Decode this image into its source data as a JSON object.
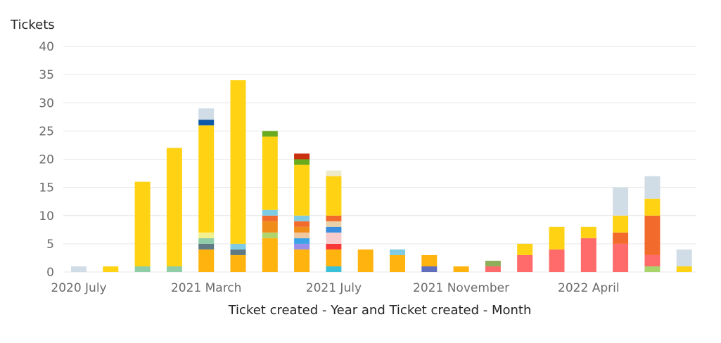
{
  "chart_data": {
    "type": "bar",
    "stacked": true,
    "title": "",
    "ylabel": "Tickets",
    "xlabel": "Ticket created - Year and Ticket created - Month",
    "ylim": [
      0,
      40
    ],
    "yticks": [
      "0",
      "5",
      "10",
      "15",
      "20",
      "25",
      "30",
      "35",
      "40"
    ],
    "grid": true,
    "legend": "none",
    "xtick_labels": [
      {
        "label": "2020 July",
        "category_index": 0
      },
      {
        "label": "2021 March",
        "category_index": 4
      },
      {
        "label": "2021 July",
        "category_index": 8
      },
      {
        "label": "2021 November",
        "category_index": 12
      },
      {
        "label": "2022 April",
        "category_index": 16
      }
    ],
    "stacks": [
      [
        {
          "v": 1,
          "c": "#d1dde6"
        }
      ],
      [
        {
          "v": 1,
          "c": "#ffd314"
        }
      ],
      [
        {
          "v": 1,
          "c": "#8fcca8"
        },
        {
          "v": 15,
          "c": "#ffd314"
        }
      ],
      [
        {
          "v": 1,
          "c": "#8fcca8"
        },
        {
          "v": 21,
          "c": "#ffd314"
        }
      ],
      [
        {
          "v": 4,
          "c": "#ffb30f"
        },
        {
          "v": 1,
          "c": "#5f7a84"
        },
        {
          "v": 1,
          "c": "#8fcca8"
        },
        {
          "v": 1,
          "c": "#f2f08f"
        },
        {
          "v": 19,
          "c": "#ffd314"
        },
        {
          "v": 1,
          "c": "#0f5aa8"
        },
        {
          "v": 2,
          "c": "#d1dde6"
        }
      ],
      [
        {
          "v": 3,
          "c": "#ffb30f"
        },
        {
          "v": 1,
          "c": "#5f7a84"
        },
        {
          "v": 1,
          "c": "#7fcbe3"
        },
        {
          "v": 29,
          "c": "#ffd314"
        }
      ],
      [
        {
          "v": 6,
          "c": "#ffb30f"
        },
        {
          "v": 1,
          "c": "#b0d46c"
        },
        {
          "v": 2,
          "c": "#f08c1a"
        },
        {
          "v": 1,
          "c": "#f26a2c"
        },
        {
          "v": 1,
          "c": "#7fcbe3"
        },
        {
          "v": 13,
          "c": "#ffd314"
        },
        {
          "v": 1,
          "c": "#6aaa1e"
        }
      ],
      [
        {
          "v": 4,
          "c": "#ffb30f"
        },
        {
          "v": 1,
          "c": "#9a8ee8"
        },
        {
          "v": 1,
          "c": "#3aa3e8"
        },
        {
          "v": 1,
          "c": "#f0c8a0"
        },
        {
          "v": 1,
          "c": "#f08c1a"
        },
        {
          "v": 1,
          "c": "#f26a2c"
        },
        {
          "v": 1,
          "c": "#7fcbe3"
        },
        {
          "v": 9,
          "c": "#ffd314"
        },
        {
          "v": 1,
          "c": "#6aaa1e"
        },
        {
          "v": 1,
          "c": "#c8300f"
        }
      ],
      [
        {
          "v": 1,
          "c": "#3ac0d8"
        },
        {
          "v": 3,
          "c": "#ffb30f"
        },
        {
          "v": 1,
          "c": "#f83838"
        },
        {
          "v": 2,
          "c": "#f8cccc"
        },
        {
          "v": 1,
          "c": "#3a8ee0"
        },
        {
          "v": 1,
          "c": "#e8d0a8"
        },
        {
          "v": 1,
          "c": "#f26a2c"
        },
        {
          "v": 7,
          "c": "#ffd314"
        },
        {
          "v": 1,
          "c": "#eeeacc"
        }
      ],
      [
        {
          "v": 4,
          "c": "#ffb30f"
        }
      ],
      [
        {
          "v": 3,
          "c": "#ffb30f"
        },
        {
          "v": 1,
          "c": "#7fcbe3"
        }
      ],
      [
        {
          "v": 1,
          "c": "#5f6ebd"
        },
        {
          "v": 2,
          "c": "#ffb30f"
        }
      ],
      [
        {
          "v": 1,
          "c": "#ffb30f"
        }
      ],
      [
        {
          "v": 1,
          "c": "#ff6b6b"
        },
        {
          "v": 1,
          "c": "#8fae5a"
        }
      ],
      [
        {
          "v": 3,
          "c": "#ff6b6b"
        },
        {
          "v": 2,
          "c": "#ffd314"
        }
      ],
      [
        {
          "v": 4,
          "c": "#ff6b6b"
        },
        {
          "v": 4,
          "c": "#ffd314"
        }
      ],
      [
        {
          "v": 6,
          "c": "#ff6b6b"
        },
        {
          "v": 2,
          "c": "#ffd314"
        }
      ],
      [
        {
          "v": 5,
          "c": "#ff6b6b"
        },
        {
          "v": 2,
          "c": "#f26a2c"
        },
        {
          "v": 3,
          "c": "#ffd314"
        },
        {
          "v": 5,
          "c": "#d1dde6"
        }
      ],
      [
        {
          "v": 1,
          "c": "#a8d46c"
        },
        {
          "v": 2,
          "c": "#ff6b6b"
        },
        {
          "v": 7,
          "c": "#f26a2c"
        },
        {
          "v": 3,
          "c": "#ffd314"
        },
        {
          "v": 4,
          "c": "#d1dde6"
        }
      ],
      [
        {
          "v": 1,
          "c": "#ffd314"
        },
        {
          "v": 3,
          "c": "#d1dde6"
        }
      ]
    ],
    "colors": {
      "grid": "#e6e6e6",
      "text": "#6b6b6b",
      "title": "#252423"
    }
  }
}
